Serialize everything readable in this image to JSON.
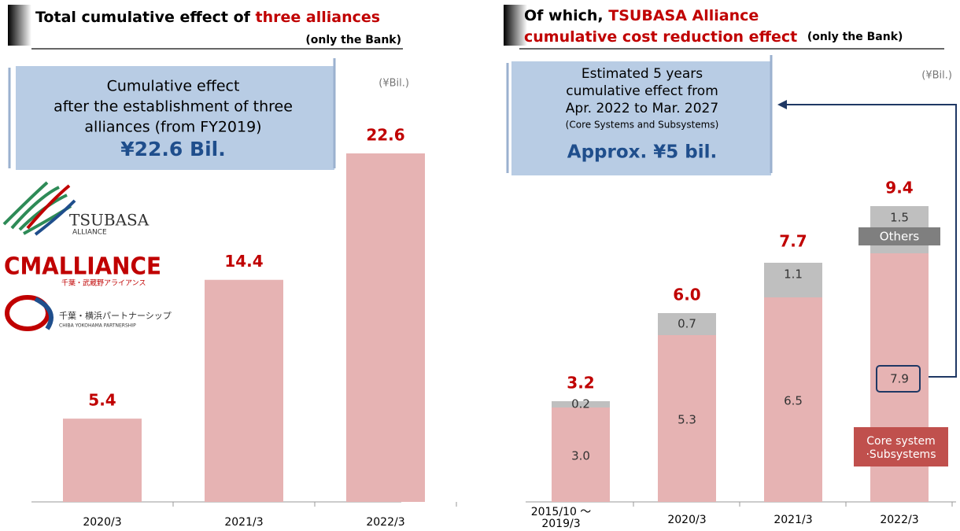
{
  "chart_data": [
    {
      "type": "bar",
      "title": [
        "Total cumulative effect of",
        "three alliances"
      ],
      "subtitle": "(only the Bank)",
      "unit": "(¥Bil.)",
      "callout": [
        "Cumulative effect",
        "after the establishment of three",
        "alliances (from FY2019)"
      ],
      "callout_value": "¥22.6 Bil.",
      "categories": [
        "2020/3",
        "2021/3",
        "2022/3"
      ],
      "values": [
        5.4,
        14.4,
        22.6
      ],
      "color": "#e6b3b3",
      "logos": [
        {
          "name": "TSUBASA",
          "tagline": "ALLIANCE"
        },
        {
          "name": "CMALLIANCE",
          "tagline": "千葉・武蔵野アライアンス"
        },
        {
          "name": "千葉・横浜パートナーシップ",
          "tagline": "CHIBA YOKOHAMA PARTNERSHIP"
        }
      ]
    },
    {
      "type": "stacked_bar",
      "title": [
        "Of which,",
        "TSUBASA Alliance",
        "cumulative cost reduction effect"
      ],
      "subtitle": "(only the Bank)",
      "unit": "(¥Bil.)",
      "callout": [
        "Estimated 5 years",
        "cumulative effect from",
        "Apr. 2022 to Mar. 2027"
      ],
      "callout_note": "(Core Systems and Subsystems)",
      "callout_value": "Approx. ¥5 bil.",
      "categories": [
        "2015/10 ～2019/3",
        "2020/3",
        "2021/3",
        "2022/3"
      ],
      "series": [
        {
          "name": "Core system ·Subsystems",
          "color": "#e6b3b3",
          "values": [
            3.0,
            5.3,
            6.5,
            7.9
          ],
          "value_labels": [
            "3.0",
            "5.3",
            "6.5",
            "7.9"
          ]
        },
        {
          "name": "Others",
          "color": "#bfbfbf",
          "values": [
            0.2,
            0.7,
            1.1,
            1.5
          ]
        }
      ],
      "totals": [
        3.2,
        6.0,
        7.7,
        9.4
      ],
      "total_labels": [
        "3.2",
        "6.0",
        "7.7",
        "9.4"
      ]
    }
  ]
}
